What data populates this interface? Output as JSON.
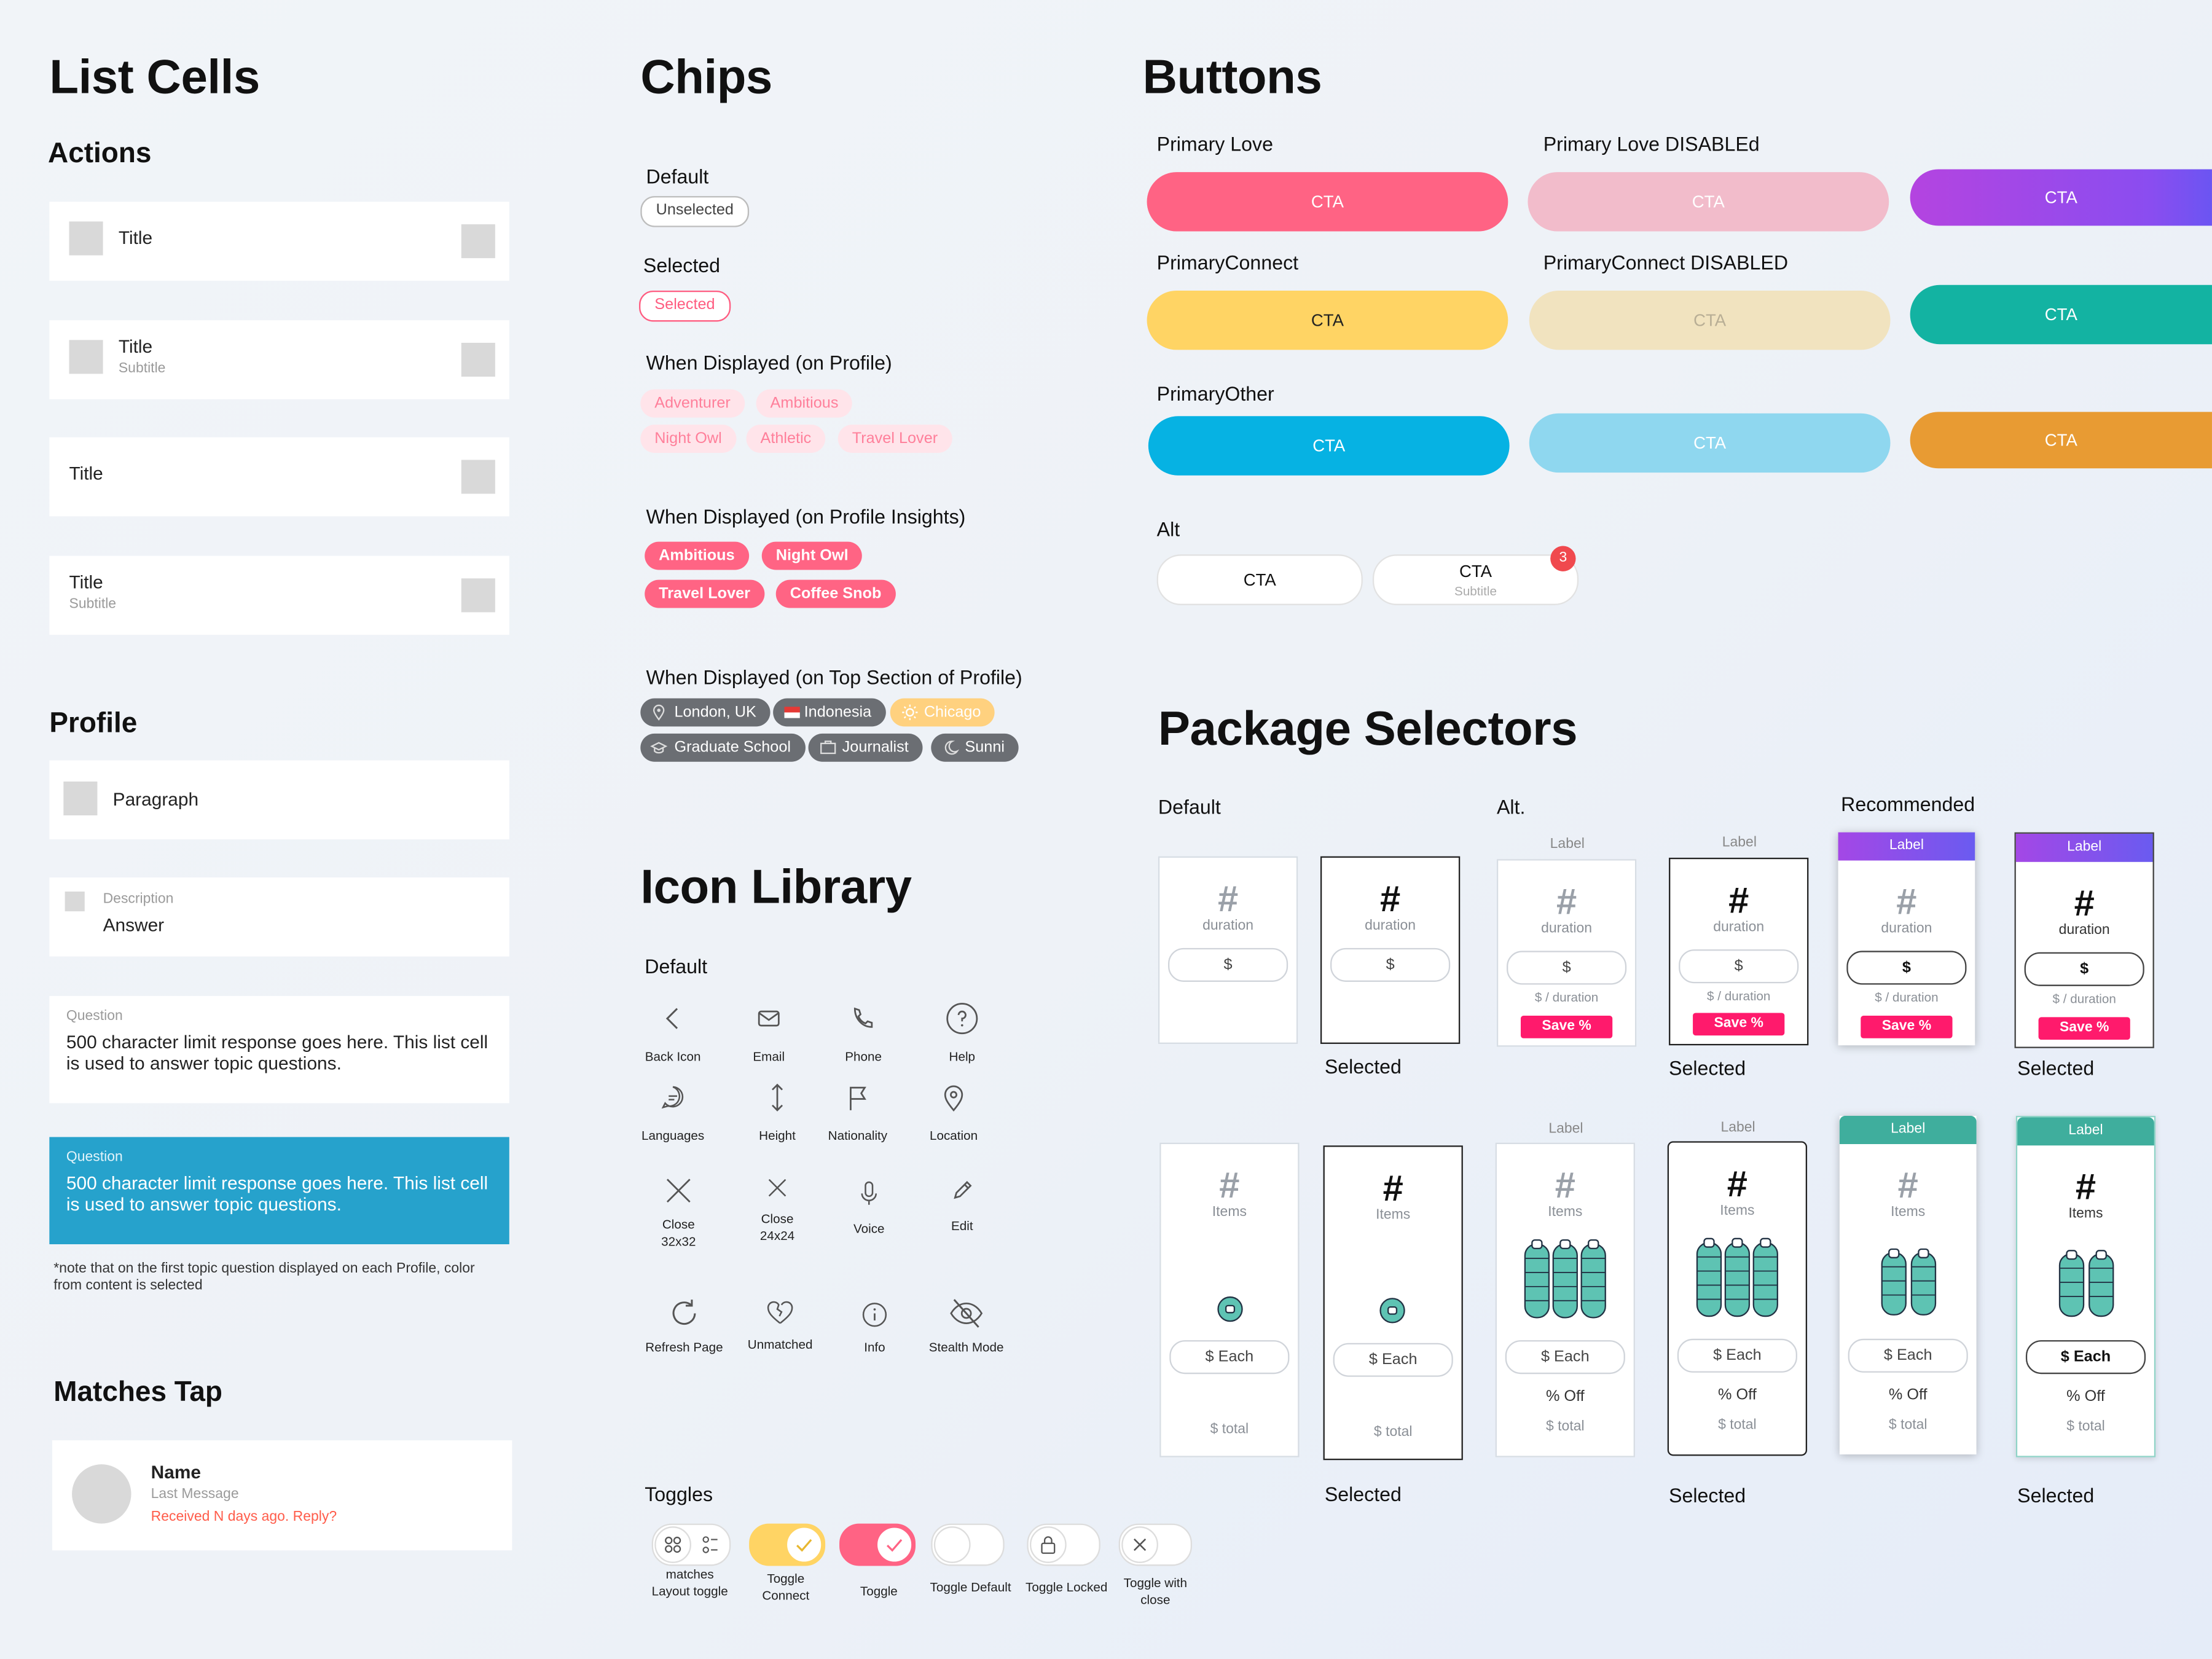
{
  "list_cells": {
    "heading": "List Cells",
    "actions_heading": "Actions",
    "cell1": {
      "title": "Title"
    },
    "cell2": {
      "title": "Title",
      "subtitle": "Subtitle"
    },
    "cell3": {
      "title": "Title"
    },
    "cell4": {
      "title": "Title",
      "subtitle": "Subtitle"
    },
    "profile_heading": "Profile",
    "paragraph": "Paragraph",
    "description": {
      "label": "Description",
      "value": "Answer"
    },
    "question1": {
      "label": "Question",
      "text": "500 character limit response goes here. This list cell is used to answer topic questions."
    },
    "question2": {
      "label": "Question",
      "text": "500 character limit response goes here. This list cell is used to answer topic questions."
    },
    "note": "*note that on the first topic question displayed on each Profile, color from content is selected",
    "matches_heading": "Matches Tap",
    "match": {
      "name": "Name",
      "last_message": "Last Message",
      "status": "Received N days ago. Reply?"
    }
  },
  "chips": {
    "heading": "Chips",
    "default_label": "Default",
    "default_chip": "Unselected",
    "selected_label": "Selected",
    "selected_chip": "Selected",
    "profile_label": "When Displayed (on Profile)",
    "profile_chips": [
      "Adventurer",
      "Ambitious",
      "Night Owl",
      "Athletic",
      "Travel Lover"
    ],
    "insights_label": "When Displayed (on Profile Insights)",
    "insights_chips": [
      "Ambitious",
      "Night Owl",
      "Travel Lover",
      "Coffee Snob"
    ],
    "top_label": "When Displayed (on Top Section of Profile)",
    "top_chips": [
      "London, UK",
      "Indonesia",
      "Chicago",
      "Graduate School",
      "Journalist",
      "Sunni"
    ]
  },
  "icons": {
    "heading": "Icon Library",
    "default_label": "Default",
    "items": [
      {
        "name": "Back Icon",
        "icon": "back-icon"
      },
      {
        "name": "Email",
        "icon": "email-icon"
      },
      {
        "name": "Phone",
        "icon": "phone-icon"
      },
      {
        "name": "Help",
        "icon": "help-icon"
      },
      {
        "name": "Languages",
        "icon": "languages-icon"
      },
      {
        "name": "Height",
        "icon": "height-icon"
      },
      {
        "name": "Nationality",
        "icon": "flag-icon"
      },
      {
        "name": "Location",
        "icon": "location-icon"
      },
      {
        "name": "Close 32x32",
        "line1": "Close",
        "line2": "32x32",
        "icon": "close-icon"
      },
      {
        "name": "Close 24x24",
        "line1": "Close",
        "line2": "24x24",
        "icon": "close-icon"
      },
      {
        "name": "Voice",
        "icon": "microphone-icon"
      },
      {
        "name": "Edit",
        "icon": "pencil-icon"
      },
      {
        "name": "Refresh Page",
        "icon": "refresh-icon"
      },
      {
        "name": "Unmatched",
        "icon": "broken-heart-icon"
      },
      {
        "name": "Info",
        "icon": "info-icon"
      },
      {
        "name": "Stealth Mode",
        "icon": "eye-off-icon"
      }
    ]
  },
  "toggles": {
    "heading": "Toggles",
    "items": [
      {
        "line1": "matches",
        "line2": "Layout toggle"
      },
      {
        "line1": "Toggle",
        "line2": "Connect"
      },
      {
        "line1": "Toggle",
        "line2": ""
      },
      {
        "line1": "Toggle Default",
        "line2": ""
      },
      {
        "line1": "Toggle Locked",
        "line2": ""
      },
      {
        "line1": "Toggle with",
        "line2": "close"
      }
    ]
  },
  "buttons": {
    "heading": "Buttons",
    "primary_love": "Primary Love",
    "primary_love_disabled": "Primary Love DISABLEd",
    "primary_connect": "PrimaryConnect",
    "primary_connect_disabled": "PrimaryConnect DISABLED",
    "primary_other": "PrimaryOther",
    "alt": "Alt",
    "cta": "CTA",
    "alt_subtitle": "Subtitle",
    "badge": "3",
    "colors": {
      "love": "#ff6384",
      "love_disabled": "#f2bccb",
      "connect": "#ffd464",
      "connect_disabled": "#f1e3bf",
      "other": "#06b2e3",
      "other_disabled": "#8fd7ef",
      "teal": "#13b3a2",
      "orange": "#e89b33"
    }
  },
  "packages": {
    "heading": "Package Selectors",
    "default_label": "Default",
    "alt_label": "Alt.",
    "recommended_label": "Recommended",
    "selected": "Selected",
    "label": "Label",
    "hash": "#",
    "duration": "duration",
    "items": "Items",
    "dollar": "$",
    "per_duration": "$ / duration",
    "save": "Save %",
    "each": "$ Each",
    "off": "% Off",
    "total": "$ total"
  }
}
